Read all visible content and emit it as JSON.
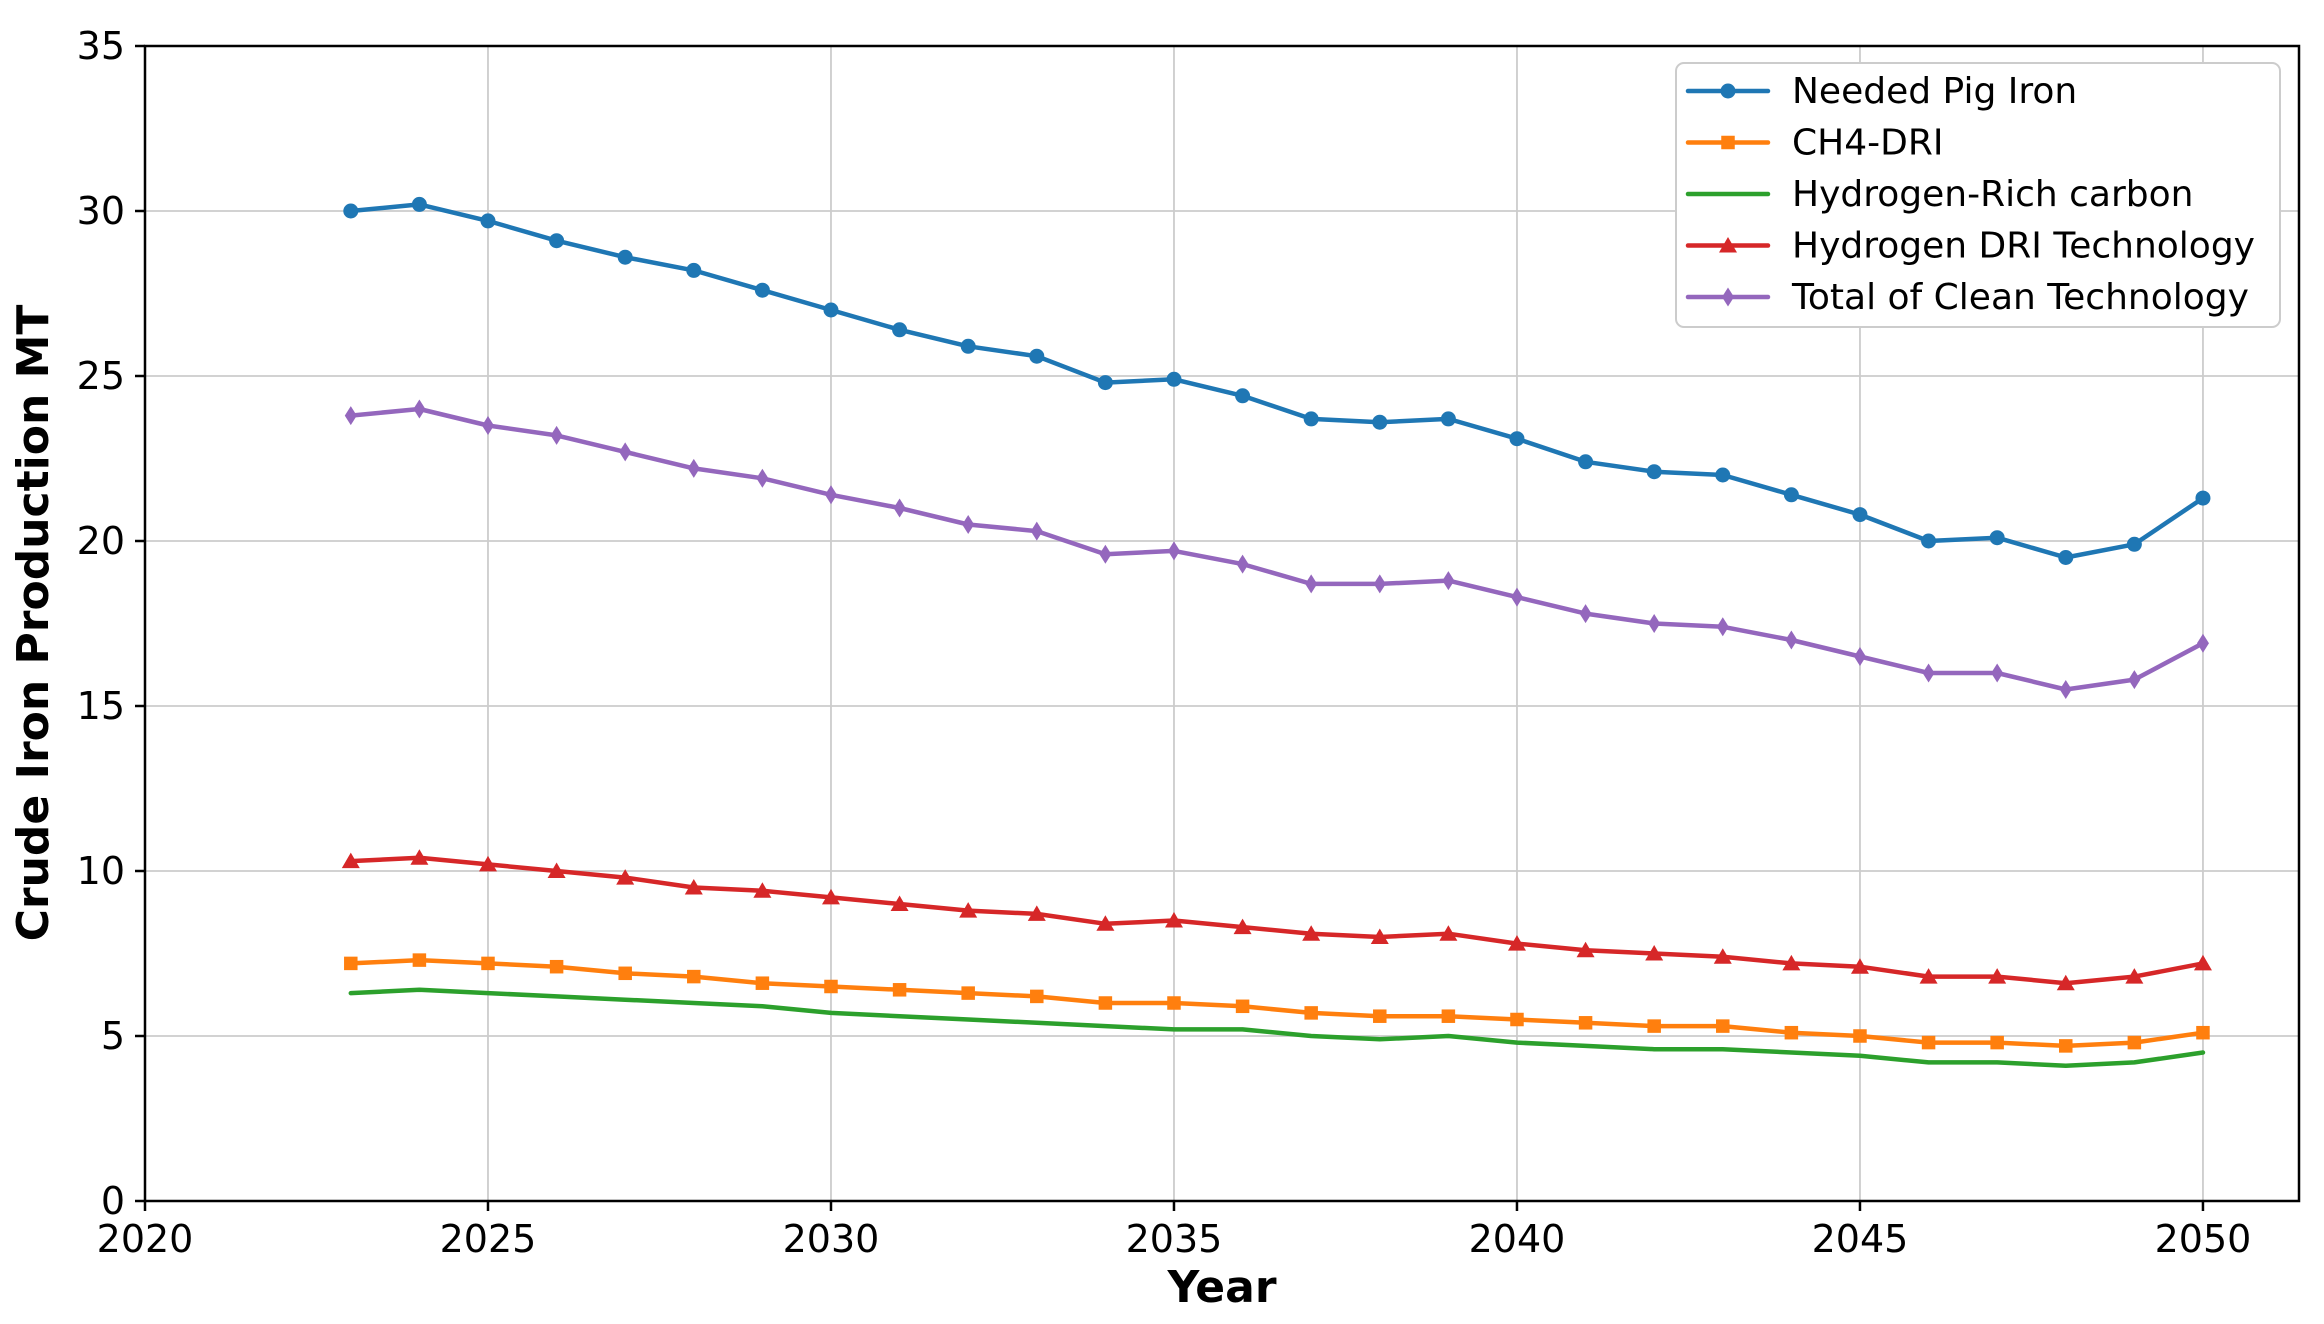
{
  "chart_data": {
    "type": "line",
    "title": "",
    "xlabel": "Year",
    "ylabel": "Crude Iron Production MT",
    "x": [
      2023,
      2024,
      2025,
      2026,
      2027,
      2028,
      2029,
      2030,
      2031,
      2032,
      2033,
      2034,
      2035,
      2036,
      2037,
      2038,
      2039,
      2040,
      2041,
      2042,
      2043,
      2044,
      2045,
      2046,
      2047,
      2048,
      2049,
      2050
    ],
    "series": [
      {
        "name": "Needed Pig Iron",
        "color": "#1f77b4",
        "marker": "circle",
        "values": [
          30.0,
          30.2,
          29.7,
          29.1,
          28.6,
          28.2,
          27.6,
          27.0,
          26.4,
          25.9,
          25.6,
          24.8,
          24.9,
          24.4,
          23.7,
          23.6,
          23.7,
          23.1,
          22.4,
          22.1,
          22.0,
          21.4,
          20.8,
          20.0,
          20.1,
          19.5,
          19.9,
          21.3
        ]
      },
      {
        "name": "CH4-DRI",
        "color": "#ff7f0e",
        "marker": "square",
        "values": [
          7.2,
          7.3,
          7.2,
          7.1,
          6.9,
          6.8,
          6.6,
          6.5,
          6.4,
          6.3,
          6.2,
          6.0,
          6.0,
          5.9,
          5.7,
          5.6,
          5.6,
          5.5,
          5.4,
          5.3,
          5.3,
          5.1,
          5.0,
          4.8,
          4.8,
          4.7,
          4.8,
          5.1
        ]
      },
      {
        "name": "Hydrogen-Rich carbon",
        "color": "#2ca02c",
        "marker": "none",
        "values": [
          6.3,
          6.4,
          6.3,
          6.2,
          6.1,
          6.0,
          5.9,
          5.7,
          5.6,
          5.5,
          5.4,
          5.3,
          5.2,
          5.2,
          5.0,
          4.9,
          5.0,
          4.8,
          4.7,
          4.6,
          4.6,
          4.5,
          4.4,
          4.2,
          4.2,
          4.1,
          4.2,
          4.5
        ]
      },
      {
        "name": "Hydrogen DRI Technology",
        "color": "#d62728",
        "marker": "triangle",
        "values": [
          10.3,
          10.4,
          10.2,
          10.0,
          9.8,
          9.5,
          9.4,
          9.2,
          9.0,
          8.8,
          8.7,
          8.4,
          8.5,
          8.3,
          8.1,
          8.0,
          8.1,
          7.8,
          7.6,
          7.5,
          7.4,
          7.2,
          7.1,
          6.8,
          6.8,
          6.6,
          6.8,
          7.2
        ]
      },
      {
        "name": "Total of Clean Technology",
        "color": "#9467bd",
        "marker": "diamond",
        "values": [
          23.8,
          24.0,
          23.5,
          23.2,
          22.7,
          22.2,
          21.9,
          21.4,
          21.0,
          20.5,
          20.3,
          19.6,
          19.7,
          19.3,
          18.7,
          18.7,
          18.8,
          18.3,
          17.8,
          17.5,
          17.4,
          17.0,
          16.5,
          16.0,
          16.0,
          15.5,
          15.8,
          16.9
        ]
      }
    ],
    "xlim": [
      2020,
      2051.4
    ],
    "ylim": [
      0,
      35
    ],
    "xticks": [
      2020,
      2025,
      2030,
      2035,
      2040,
      2045,
      2050
    ],
    "yticks": [
      0,
      5,
      10,
      15,
      20,
      25,
      30,
      35
    ],
    "grid": true,
    "legend_position": "upper right",
    "colors": {
      "grid": "#cccccc",
      "spine": "#000000",
      "text": "#000000",
      "background": "#ffffff",
      "legend_border": "#cccccc"
    }
  }
}
